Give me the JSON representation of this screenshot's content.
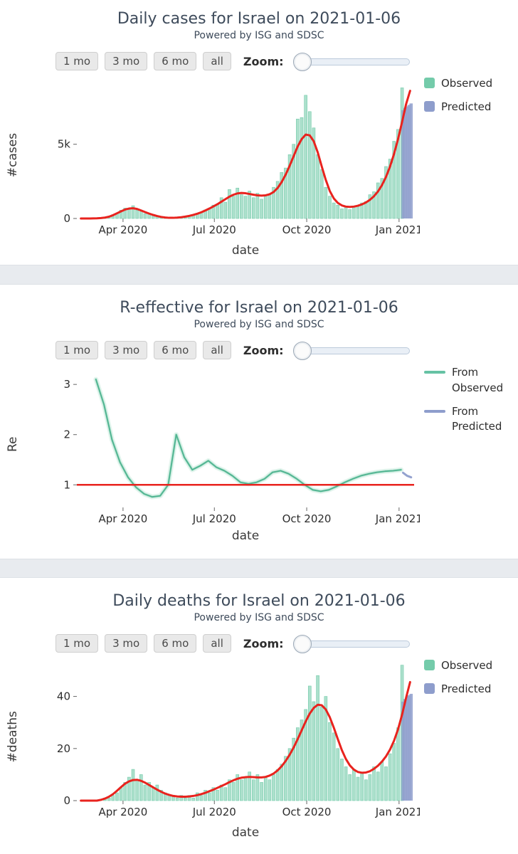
{
  "controls": {
    "range_buttons": [
      "1 mo",
      "3 mo",
      "6 mo",
      "all"
    ],
    "zoom_label": "Zoom:"
  },
  "colors": {
    "observed": "#68c7a3",
    "observed_line": "#4fb390",
    "predicted": "#8e9dcc",
    "trend": "#e8231e"
  },
  "chart_data": [
    {
      "type": "bar+line",
      "title": "Daily cases for Israel on 2021-01-06",
      "subtitle": "Powered by ISG and SDSC",
      "ylabel": "#cases",
      "xlabel": "date",
      "xlim": [
        "2020-02-15",
        "2021-01-16"
      ],
      "ylim": [
        0,
        9300
      ],
      "yticks": [
        {
          "v": 0,
          "l": "0"
        },
        {
          "v": 5000,
          "l": "5k"
        }
      ],
      "xticks": [
        {
          "v": "2020-04-01",
          "l": "Apr 2020"
        },
        {
          "v": "2020-07-01",
          "l": "Jul 2020"
        },
        {
          "v": "2020-10-01",
          "l": "Oct 2020"
        },
        {
          "v": "2021-01-01",
          "l": "Jan 2021"
        }
      ],
      "start_date": "2020-02-19",
      "step_days": 4,
      "observed": [
        0,
        0,
        2,
        6,
        18,
        25,
        70,
        110,
        260,
        350,
        560,
        700,
        600,
        860,
        560,
        500,
        330,
        310,
        200,
        160,
        80,
        55,
        25,
        50,
        55,
        100,
        120,
        200,
        240,
        360,
        400,
        580,
        660,
        900,
        950,
        1400,
        1100,
        1950,
        1500,
        2050,
        1600,
        1500,
        1850,
        1400,
        1700,
        1300,
        1550,
        1650,
        2100,
        2500,
        3100,
        3400,
        4300,
        5000,
        6700,
        6800,
        8300,
        7200,
        6100,
        4300,
        3300,
        2100,
        1500,
        1050,
        900,
        650,
        820,
        600,
        780,
        850,
        1050,
        1150,
        1600,
        1800,
        2400,
        2700,
        3500,
        4000,
        5200,
        6000,
        8800
      ],
      "trend": [
        0,
        0,
        1,
        4,
        12,
        28,
        60,
        120,
        220,
        350,
        480,
        600,
        670,
        690,
        640,
        540,
        430,
        330,
        240,
        165,
        105,
        65,
        45,
        45,
        60,
        85,
        125,
        175,
        240,
        320,
        420,
        540,
        670,
        810,
        960,
        1130,
        1300,
        1470,
        1600,
        1690,
        1720,
        1700,
        1650,
        1600,
        1560,
        1540,
        1560,
        1630,
        1780,
        2050,
        2450,
        2950,
        3550,
        4200,
        4850,
        5350,
        5650,
        5600,
        5200,
        4450,
        3500,
        2600,
        1850,
        1350,
        1050,
        880,
        800,
        780,
        800,
        860,
        950,
        1080,
        1260,
        1500,
        1820,
        2250,
        2800,
        3500,
        4350,
        5350,
        6500,
        7700,
        8600
      ],
      "predicted": {
        "start_date": "2021-01-05",
        "step_days": 2,
        "values": [
          7300,
          7450,
          7550,
          7650,
          7750
        ]
      },
      "legend": [
        {
          "label": "Observed",
          "swatch": "square",
          "color": "#74cbaa"
        },
        {
          "label": "Predicted",
          "swatch": "square",
          "color": "#8e9dcc"
        }
      ]
    },
    {
      "type": "line",
      "title": "R-effective for Israel on 2021-01-06",
      "subtitle": "Powered by ISG and SDSC",
      "ylabel": "Re",
      "xlabel": "date",
      "xlim": [
        "2020-02-15",
        "2021-01-16"
      ],
      "ylim": [
        0.55,
        3.3
      ],
      "ref_value": 1,
      "yticks": [
        {
          "v": 1,
          "l": "1"
        },
        {
          "v": 2,
          "l": "2"
        },
        {
          "v": 3,
          "l": "3"
        }
      ],
      "xticks": [
        {
          "v": "2020-04-01",
          "l": "Apr 2020"
        },
        {
          "v": "2020-07-01",
          "l": "Jul 2020"
        },
        {
          "v": "2020-10-01",
          "l": "Oct 2020"
        },
        {
          "v": "2021-01-01",
          "l": "Jan 2021"
        }
      ],
      "start_date": "2020-03-05",
      "step_days": 8,
      "line": [
        3.1,
        2.6,
        1.9,
        1.45,
        1.15,
        0.95,
        0.82,
        0.76,
        0.78,
        1.0,
        2.0,
        1.55,
        1.3,
        1.38,
        1.48,
        1.35,
        1.28,
        1.18,
        1.05,
        1.02,
        1.05,
        1.12,
        1.25,
        1.28,
        1.22,
        1.12,
        1.0,
        0.9,
        0.87,
        0.9,
        0.97,
        1.05,
        1.12,
        1.18,
        1.22,
        1.25,
        1.27,
        1.28,
        1.3
      ],
      "predicted": {
        "start_date": "2021-01-05",
        "step_days": 4,
        "values": [
          1.24,
          1.18,
          1.15
        ]
      },
      "legend": [
        {
          "label": "From Observed",
          "swatch": "line",
          "color": "#66c2a4"
        },
        {
          "label": "From Predicted",
          "swatch": "line",
          "color": "#8e9dcc"
        }
      ]
    },
    {
      "type": "bar+line",
      "title": "Daily deaths for Israel on 2021-01-06",
      "subtitle": "Powered by ISG and SDSC",
      "ylabel": "#deaths",
      "xlabel": "date",
      "xlim": [
        "2020-02-15",
        "2021-01-16"
      ],
      "ylim": [
        0,
        53
      ],
      "yticks": [
        {
          "v": 0,
          "l": "0"
        },
        {
          "v": 20,
          "l": "20"
        },
        {
          "v": 40,
          "l": "40"
        }
      ],
      "xticks": [
        {
          "v": "2020-04-01",
          "l": "Apr 2020"
        },
        {
          "v": "2020-07-01",
          "l": "Jul 2020"
        },
        {
          "v": "2020-10-01",
          "l": "Oct 2020"
        },
        {
          "v": "2021-01-01",
          "l": "Jan 2021"
        }
      ],
      "start_date": "2020-02-19",
      "step_days": 4,
      "observed": [
        0,
        0,
        0,
        0,
        0,
        0,
        1,
        1,
        2,
        3,
        5,
        7,
        9,
        12,
        8,
        10,
        6,
        7,
        5,
        6,
        4,
        3,
        2,
        2,
        1,
        2,
        1,
        2,
        1,
        3,
        2,
        4,
        3,
        5,
        4,
        6,
        5,
        8,
        7,
        10,
        8,
        9,
        11,
        8,
        10,
        7,
        9,
        8,
        10,
        12,
        14,
        17,
        20,
        24,
        28,
        31,
        35,
        44,
        38,
        48,
        36,
        40,
        30,
        26,
        20,
        16,
        13,
        10,
        12,
        9,
        11,
        8,
        10,
        13,
        11,
        15,
        13,
        18,
        22,
        28,
        52
      ],
      "trend": [
        0,
        0,
        0,
        0,
        0,
        0.3,
        0.8,
        1.5,
        2.5,
        3.8,
        5.2,
        6.5,
        7.4,
        7.9,
        8.0,
        7.6,
        6.9,
        6.0,
        5.1,
        4.2,
        3.4,
        2.7,
        2.2,
        1.8,
        1.6,
        1.5,
        1.5,
        1.6,
        1.8,
        2.1,
        2.5,
        3.0,
        3.6,
        4.2,
        4.9,
        5.6,
        6.3,
        7.1,
        7.8,
        8.4,
        8.8,
        9.0,
        9.1,
        9.0,
        8.9,
        8.9,
        9.1,
        9.6,
        10.4,
        11.6,
        13.2,
        15.2,
        17.6,
        20.4,
        23.6,
        27.0,
        30.4,
        33.4,
        35.6,
        36.8,
        36.6,
        35.0,
        32.0,
        28.0,
        23.6,
        19.4,
        16.0,
        13.5,
        11.9,
        11.0,
        10.7,
        10.8,
        11.3,
        12.2,
        13.4,
        15.0,
        17.0,
        19.6,
        23.0,
        27.4,
        33.0,
        39.5,
        45.5
      ],
      "predicted": {
        "start_date": "2021-01-05",
        "step_days": 2,
        "values": [
          38,
          39,
          40,
          40.5,
          41
        ]
      },
      "legend": [
        {
          "label": "Observed",
          "swatch": "square",
          "color": "#74cbaa"
        },
        {
          "label": "Predicted",
          "swatch": "square",
          "color": "#8e9dcc"
        }
      ]
    }
  ]
}
